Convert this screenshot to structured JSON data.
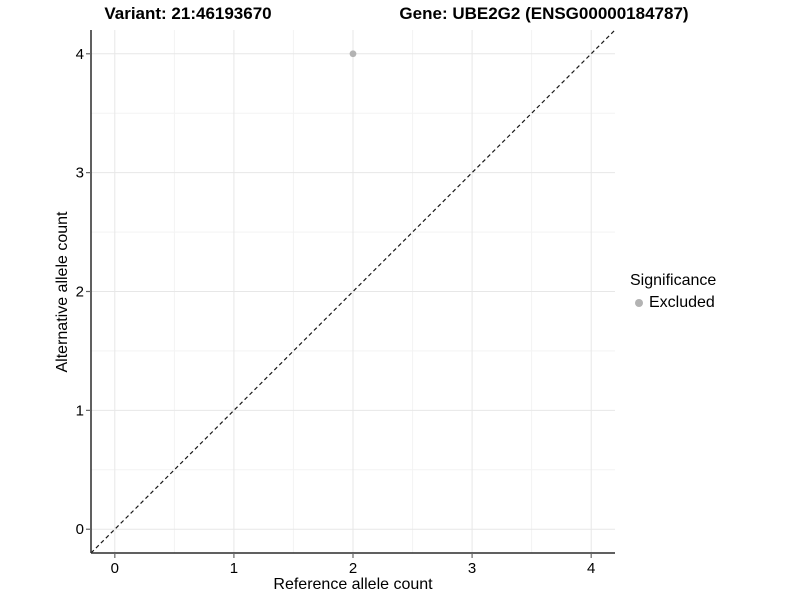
{
  "header": {
    "variant_title": "Variant: 21:46193670",
    "gene_title": "Gene: UBE2G2 (ENSG00000184787)"
  },
  "legend": {
    "title": "Significance",
    "items": [
      {
        "label": "Excluded",
        "color": "#b3b3b3"
      }
    ]
  },
  "chart_data": {
    "type": "scatter",
    "title_left": "Variant: 21:46193670",
    "title_right": "Gene: UBE2G2 (ENSG00000184787)",
    "xlabel": "Reference allele count",
    "ylabel": "Alternative allele count",
    "xlim": [
      -0.2,
      4.2
    ],
    "ylim": [
      -0.2,
      4.2
    ],
    "x_ticks": [
      0,
      1,
      2,
      3,
      4
    ],
    "y_ticks": [
      0,
      1,
      2,
      3,
      4
    ],
    "grid": "major-and-minor",
    "legend_position": "right",
    "legend_title": "Significance",
    "series": [
      {
        "name": "Excluded",
        "color": "#b3b3b3",
        "points": [
          {
            "x": 2,
            "y": 4
          }
        ]
      }
    ],
    "reference_line": {
      "equation": "y = x",
      "style": "dashed",
      "color": "#1a1a1a"
    }
  },
  "colors": {
    "background": "#ffffff",
    "grid_major": "#e7e7e7",
    "grid_minor": "#f3f3f3",
    "axis_line": "#2b2b2b",
    "tick_mark": "#666666",
    "text": "#000000",
    "point": "#b3b3b3"
  }
}
